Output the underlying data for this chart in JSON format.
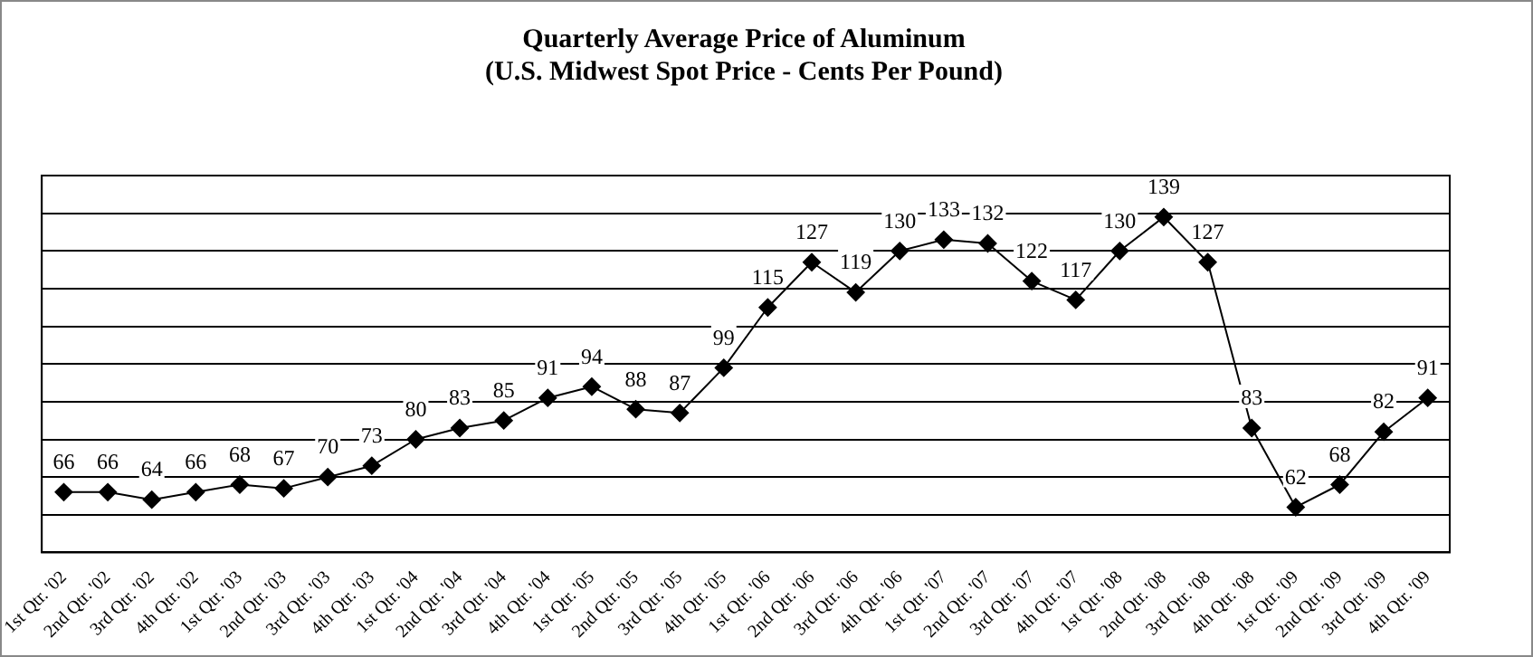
{
  "chart_data": {
    "type": "line",
    "title": "Quarterly Average Price of Aluminum",
    "subtitle": "(U.S. Midwest Spot Price - Cents Per Pound)",
    "categories": [
      "1st Qtr. '02",
      "2nd Qtr. '02",
      "3rd Qtr. '02",
      "4th Qtr. '02",
      "1st Qtr. '03",
      "2nd Qtr. '03",
      "3rd Qtr. '03",
      "4th Qtr. '03",
      "1st Qtr. '04",
      "2nd Qtr. '04",
      "3rd Qtr. '04",
      "4th Qtr. '04",
      "1st Qtr. '05",
      "2nd Qtr. '05",
      "3rd Qtr. '05",
      "4th Qtr. '05",
      "1st Qtr. '06",
      "2nd Qtr. '06",
      "3rd Qtr. '06",
      "4th Qtr. '06",
      "1st Qtr. '07",
      "2nd Qtr. '07",
      "3rd Qtr. '07",
      "4th Qtr. '07",
      "1st Qtr. '08",
      "2nd Qtr. '08",
      "3rd Qtr. '08",
      "4th Qtr. '08",
      "1st Qtr. '09",
      "2nd Qtr. '09",
      "3rd Qtr. '09",
      "4th Qtr. '09"
    ],
    "values": [
      66,
      66,
      64,
      66,
      68,
      67,
      70,
      73,
      80,
      83,
      85,
      91,
      94,
      88,
      87,
      99,
      115,
      127,
      119,
      130,
      133,
      132,
      122,
      117,
      130,
      139,
      127,
      83,
      62,
      68,
      82,
      91
    ],
    "color": "#000000",
    "ylim": [
      50,
      150
    ],
    "yticks": [
      {
        "value": 50,
        "label": null
      },
      {
        "value": 60,
        "label": null
      },
      {
        "value": 70,
        "label": null
      },
      {
        "value": 80,
        "label": null
      },
      {
        "value": 90,
        "label": null
      },
      {
        "value": 100,
        "label": null
      },
      {
        "value": 110,
        "label": null
      },
      {
        "value": 120,
        "label": null
      },
      {
        "value": 130,
        "label": null
      },
      {
        "value": 140,
        "label": null
      },
      {
        "value": 150,
        "label": null
      }
    ],
    "tick_labels": "x",
    "grid": "y",
    "legend": false,
    "marker": "diamond",
    "line_style": "solid",
    "data_labels": true
  }
}
